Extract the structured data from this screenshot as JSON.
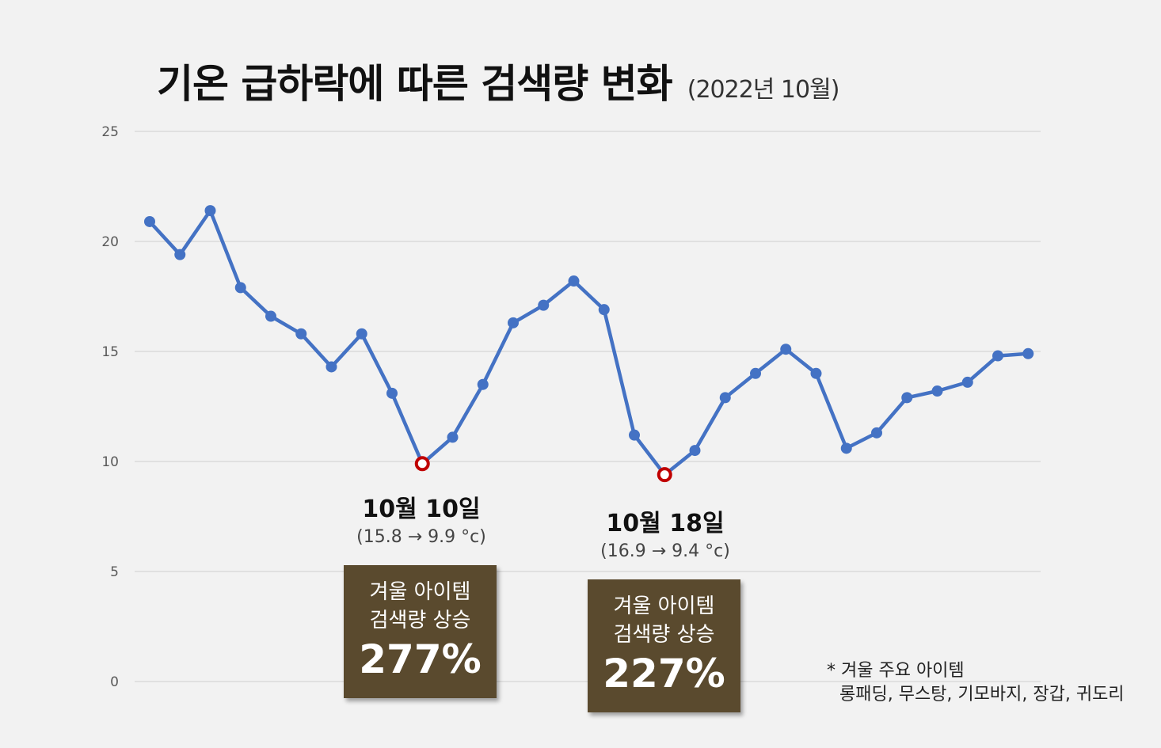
{
  "title": "기온 급하락에 따른 검색량 변화",
  "subtitle": "(2022년 10월)",
  "chart_data": {
    "type": "line",
    "ylim": [
      0,
      25
    ],
    "yticks": [
      "0",
      "5",
      "10",
      "15",
      "20",
      "25"
    ],
    "grid": true,
    "color": "#4472c4",
    "highlight_color": "#c00000",
    "series": [
      {
        "values": [
          20.9,
          19.4,
          21.4,
          17.9,
          16.6,
          15.8,
          14.3,
          15.8,
          13.1,
          9.9,
          11.1,
          13.5,
          16.3,
          17.1,
          18.2,
          16.9,
          11.2,
          9.4,
          10.5,
          12.9,
          14.0,
          15.1,
          14.0,
          10.6,
          11.3,
          12.9,
          13.2,
          13.6,
          14.8,
          14.9
        ]
      }
    ],
    "highlight_indices": [
      9,
      17
    ]
  },
  "annotations": [
    {
      "date": "10월 10일",
      "temp": "(15.8 → 9.9 °c)",
      "line1": "겨울 아이템",
      "line2": "검색량 상승",
      "pct": "277%"
    },
    {
      "date": "10월 18일",
      "temp": "(16.9 → 9.4 °c)",
      "line1": "겨울 아이템",
      "line2": "검색량 상승",
      "pct": "227%"
    }
  ],
  "footnote": {
    "line1": "* 겨울 주요 아이템",
    "line2": "롱패딩, 무스탕, 기모바지, 장갑, 귀도리"
  }
}
